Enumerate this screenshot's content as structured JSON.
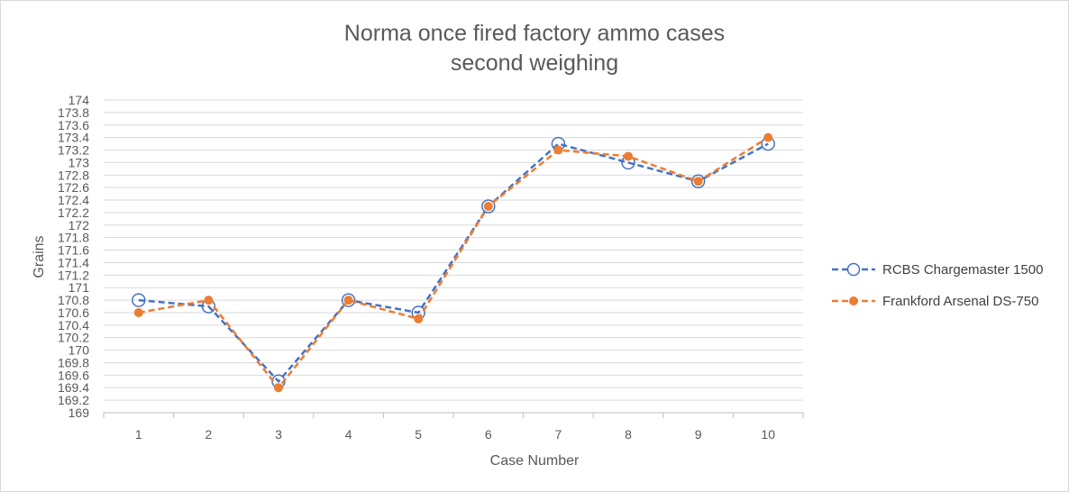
{
  "chart_data": {
    "type": "line",
    "title_lines": [
      "Norma once fired factory ammo cases",
      "second weighing"
    ],
    "xlabel": "Case Number",
    "ylabel": "Grains",
    "categories": [
      "1",
      "2",
      "3",
      "4",
      "5",
      "6",
      "7",
      "8",
      "9",
      "10"
    ],
    "ylim": [
      169,
      174
    ],
    "ystep": 0.2,
    "ytick_labels": [
      "169",
      "169.2",
      "169.4",
      "169.6",
      "169.8",
      "170",
      "170.2",
      "170.4",
      "170.6",
      "170.8",
      "171",
      "171.2",
      "171.4",
      "171.6",
      "171.8",
      "172",
      "172.2",
      "172.4",
      "172.6",
      "172.8",
      "173",
      "173.2",
      "173.4",
      "173.6",
      "173.8",
      "174"
    ],
    "grid": true,
    "legend_position": "right",
    "series": [
      {
        "name": "RCBS Chargemaster 1500",
        "color": "#4472C4",
        "marker": "open-circle",
        "line_style": "dashed",
        "values": [
          170.8,
          170.7,
          169.5,
          170.8,
          170.6,
          172.3,
          173.3,
          173.0,
          172.7,
          173.3
        ]
      },
      {
        "name": "Frankford Arsenal DS-750",
        "color": "#ED7D31",
        "marker": "filled-circle",
        "line_style": "dashed",
        "values": [
          170.6,
          170.8,
          169.4,
          170.8,
          170.5,
          172.3,
          173.2,
          173.1,
          172.7,
          173.4
        ]
      }
    ]
  }
}
